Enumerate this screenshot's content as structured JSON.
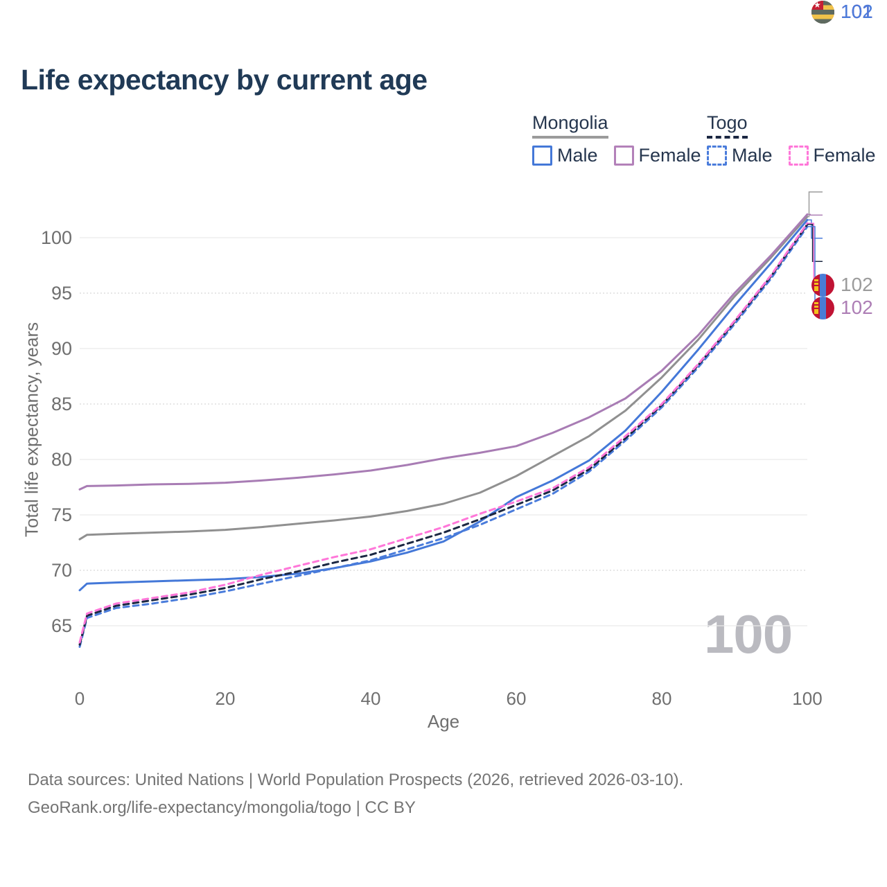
{
  "title": "Life expectancy by current age",
  "legend": {
    "groups": [
      {
        "label": "Mongolia",
        "line_style": "solid",
        "color": "#9b9b9b",
        "items": [
          {
            "label": "Male",
            "color": "#4478d8",
            "line_style": "solid"
          },
          {
            "label": "Female",
            "color": "#b381b9",
            "line_style": "solid"
          }
        ]
      },
      {
        "label": "Togo",
        "line_style": "dashed",
        "color": "#1b2742",
        "items": [
          {
            "label": "Male",
            "color": "#4a7cdb",
            "line_style": "dashed"
          },
          {
            "label": "Female",
            "color": "#ff77d9",
            "line_style": "dashed"
          }
        ]
      }
    ]
  },
  "chart_data": {
    "type": "line",
    "title": "Life expectancy by current age",
    "xlabel": "Age",
    "ylabel": "Total life expectancy, years",
    "xticks": [
      0,
      20,
      40,
      60,
      80,
      100
    ],
    "yticks": [
      65,
      70,
      75,
      80,
      85,
      90,
      95,
      100
    ],
    "xlim": [
      0,
      100
    ],
    "ylim": [
      62.5,
      103
    ],
    "grid": "horizontal",
    "legend_position": "top-right",
    "x": [
      0,
      1,
      5,
      10,
      15,
      20,
      25,
      30,
      35,
      40,
      45,
      50,
      55,
      60,
      65,
      70,
      75,
      80,
      85,
      90,
      95,
      100
    ],
    "series": [
      {
        "name": "Mongolia (both sexes)",
        "key": "mongolia-both",
        "color": "#909090",
        "line_style": "solid",
        "values": [
          72.8,
          73.2,
          73.3,
          73.4,
          73.5,
          73.65,
          73.9,
          74.2,
          74.5,
          74.85,
          75.35,
          76.0,
          77.0,
          78.5,
          80.3,
          82.1,
          84.4,
          87.4,
          90.8,
          94.7,
          98.2,
          101.9
        ]
      },
      {
        "name": "Mongolia Female",
        "key": "mongolia-female",
        "color": "#a87cb4",
        "line_style": "solid",
        "values": [
          77.3,
          77.6,
          77.65,
          77.75,
          77.8,
          77.9,
          78.1,
          78.35,
          78.65,
          79.0,
          79.5,
          80.1,
          80.6,
          81.2,
          82.4,
          83.8,
          85.5,
          88.0,
          91.2,
          95.0,
          98.4,
          102.1
        ]
      },
      {
        "name": "Mongolia Male",
        "key": "mongolia-male",
        "color": "#4478d8",
        "line_style": "solid",
        "values": [
          68.2,
          68.8,
          68.9,
          69.0,
          69.1,
          69.2,
          69.4,
          69.7,
          70.2,
          70.8,
          71.6,
          72.6,
          74.4,
          76.6,
          78.1,
          79.9,
          82.6,
          86.1,
          89.9,
          93.9,
          97.7,
          101.6
        ]
      },
      {
        "name": "Togo Male",
        "key": "togo-male",
        "color": "#4a7cdb",
        "line_style": "dashed",
        "values": [
          63.1,
          65.7,
          66.6,
          67.0,
          67.5,
          68.1,
          68.8,
          69.5,
          70.2,
          70.9,
          71.9,
          72.9,
          74.1,
          75.5,
          76.9,
          78.9,
          81.7,
          84.7,
          88.3,
          92.2,
          96.3,
          101.0
        ]
      },
      {
        "name": "Togo (both sexes)",
        "key": "togo-both",
        "color": "#1b2742",
        "line_style": "dashed",
        "values": [
          63.3,
          65.9,
          66.8,
          67.3,
          67.8,
          68.4,
          69.2,
          69.9,
          70.7,
          71.4,
          72.4,
          73.4,
          74.6,
          75.9,
          77.2,
          79.1,
          81.9,
          84.9,
          88.5,
          92.4,
          96.5,
          101.2
        ]
      },
      {
        "name": "Togo Female",
        "key": "togo-female",
        "color": "#ff77d9",
        "line_style": "dashed",
        "values": [
          63.5,
          66.1,
          67.0,
          67.5,
          68.0,
          68.7,
          69.6,
          70.4,
          71.2,
          71.9,
          72.9,
          73.9,
          75.1,
          76.2,
          77.4,
          79.3,
          82.1,
          85.0,
          88.6,
          92.5,
          96.6,
          101.3
        ]
      }
    ]
  },
  "annotations": {
    "watermark": "100",
    "end_labels": [
      {
        "value": "102",
        "series_key": "mongolia-both",
        "color": "#9b9b9b",
        "flag": "mongolia"
      },
      {
        "value": "102",
        "series_key": "mongolia-female",
        "color": "#ad7eb5",
        "flag": "mongolia"
      },
      {
        "value": "102",
        "series_key": "mongolia-male",
        "color": "#4a7cdb",
        "flag": "mongolia"
      },
      {
        "value": "101",
        "series_key": "togo-both",
        "color": "#1b2742",
        "flag": "togo"
      },
      {
        "value": "101",
        "series_key": "togo-female",
        "color": "#ff77d9",
        "flag": "togo"
      },
      {
        "value": "101",
        "series_key": "togo-male",
        "color": "#4a7cdb",
        "flag": "togo"
      }
    ]
  },
  "footer": {
    "line1": "Data sources: United Nations | World Population Prospects (2026, retrieved 2026-03-10).",
    "line2": "GeoRank.org/life-expectancy/mongolia/togo | CC BY"
  }
}
